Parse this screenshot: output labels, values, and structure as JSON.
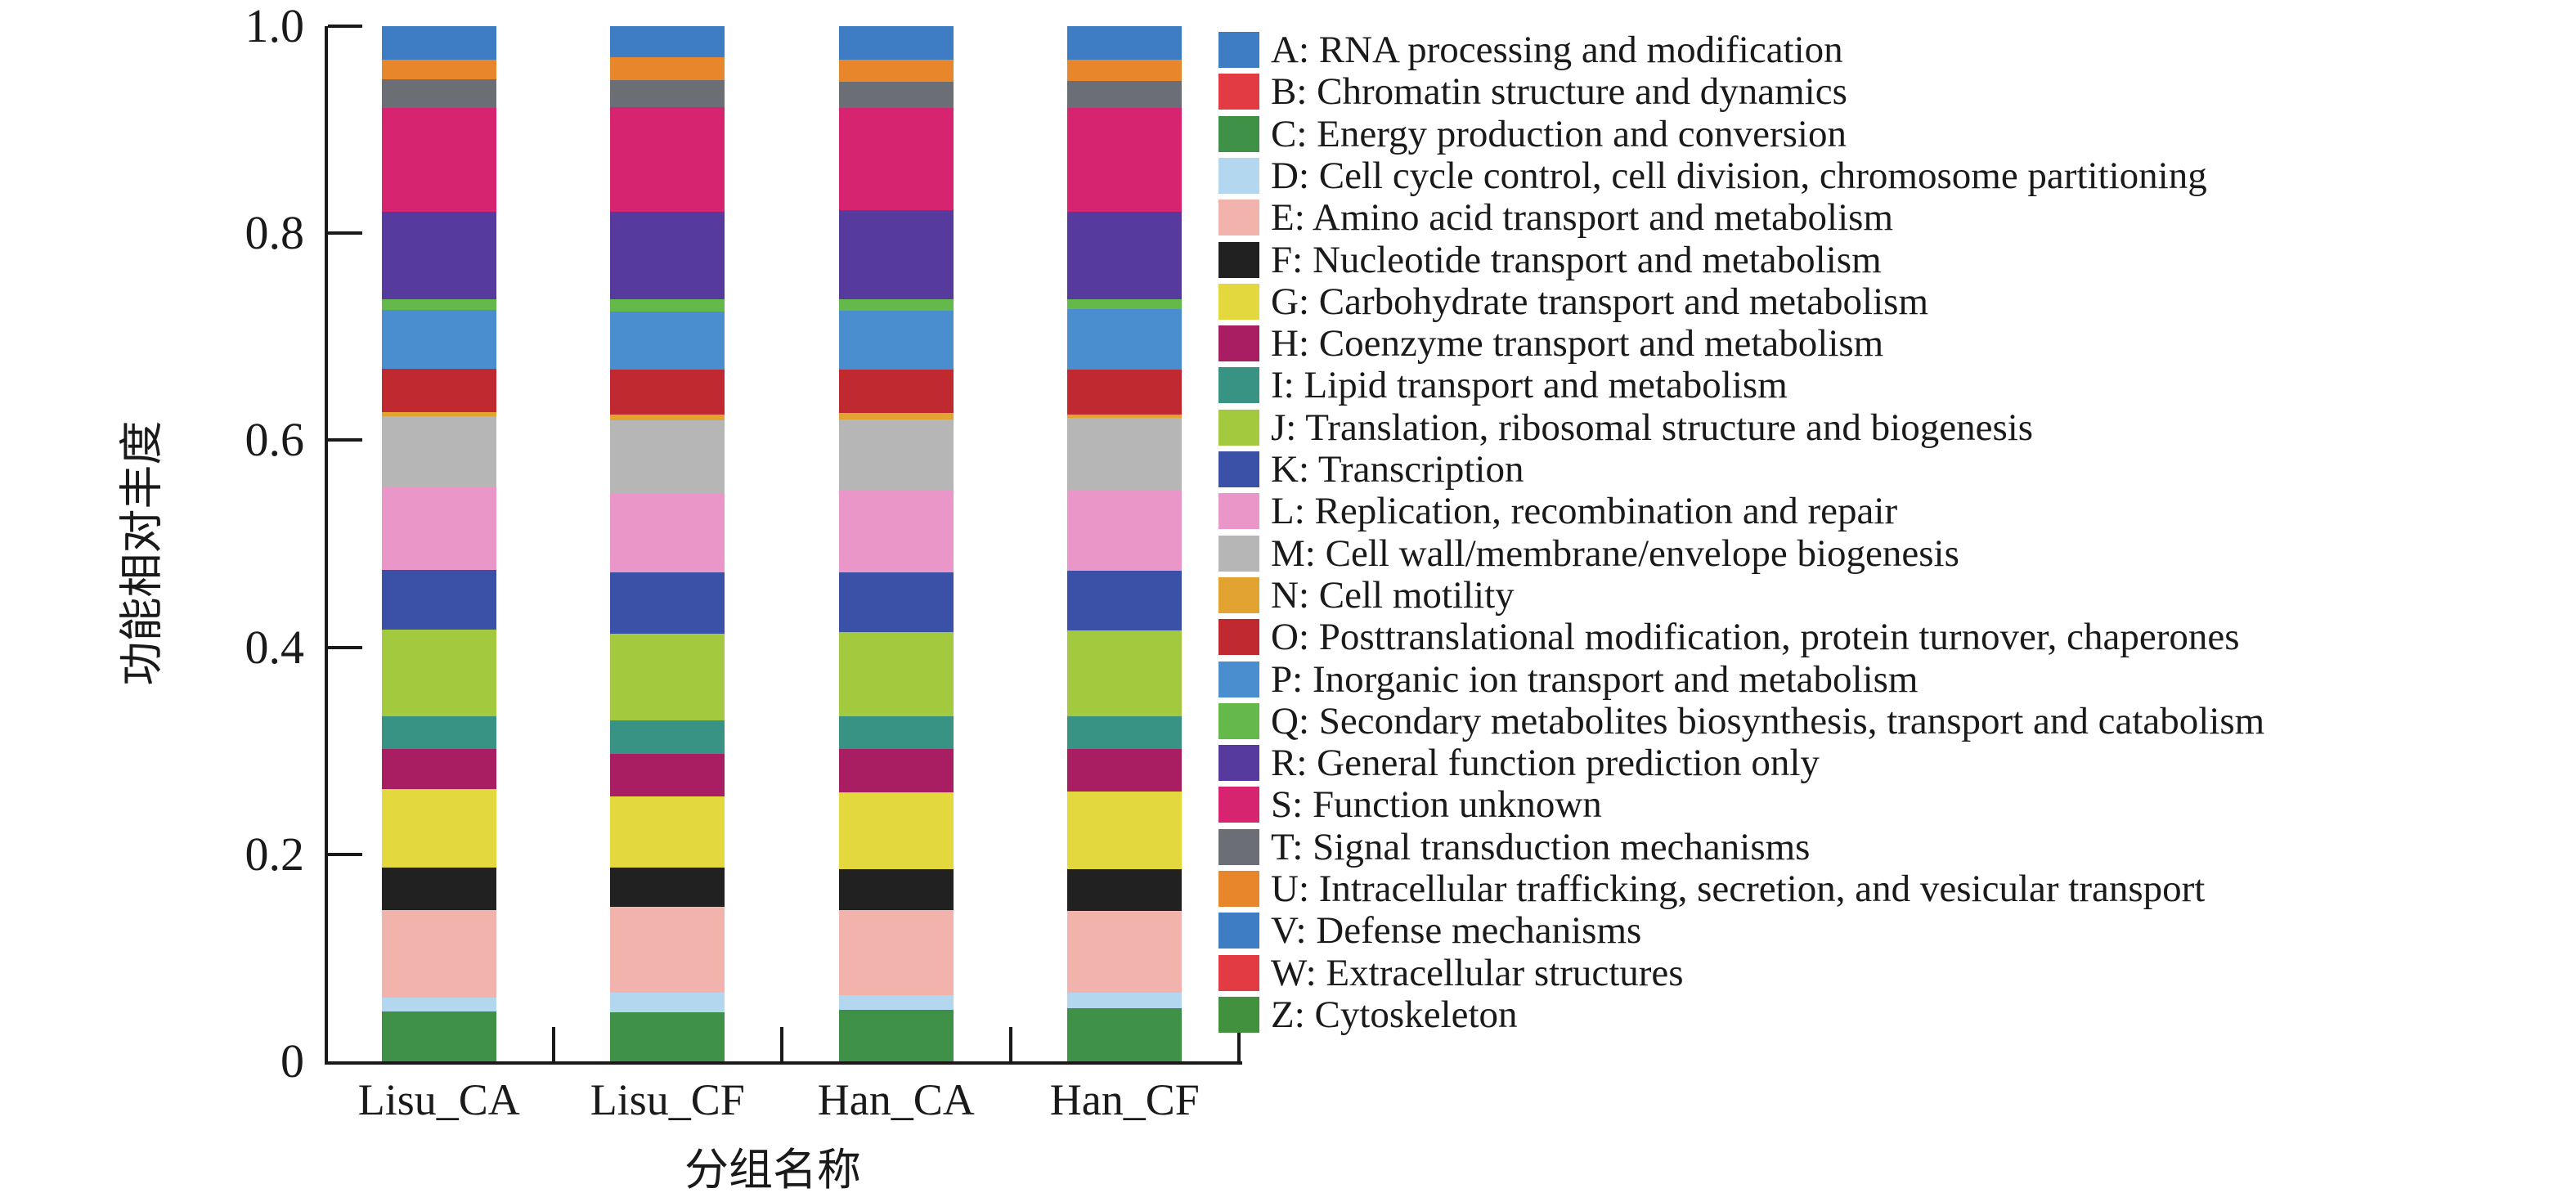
{
  "chart_data": {
    "type": "bar",
    "stacked": true,
    "title": "",
    "xlabel": "分组名称",
    "ylabel": "功能相对丰度",
    "ylim": [
      0,
      1.0
    ],
    "grid": false,
    "legend_position": "right",
    "categories": [
      "Lisu_CA",
      "Lisu_CF",
      "Han_CA",
      "Han_CF"
    ],
    "y_ticks": [
      {
        "label": "1.0",
        "value": 1.0
      },
      {
        "label": "0.8",
        "value": 0.8
      },
      {
        "label": "0.6",
        "value": 0.6
      },
      {
        "label": "0.4",
        "value": 0.4
      },
      {
        "label": "0.2",
        "value": 0.2
      },
      {
        "label": "0",
        "value": 0.0
      }
    ],
    "series": [
      {
        "letter": "C",
        "name": "Energy production and conversion",
        "values": [
          0.048,
          0.047,
          0.05,
          0.051
        ]
      },
      {
        "letter": "D",
        "name": "Cell cycle control, cell division, chromosome partitioning",
        "values": [
          0.014,
          0.019,
          0.014,
          0.015
        ]
      },
      {
        "letter": "E",
        "name": "Amino acid transport and metabolism",
        "values": [
          0.084,
          0.083,
          0.082,
          0.079
        ]
      },
      {
        "letter": "F",
        "name": "Nucleotide transport and metabolism",
        "values": [
          0.041,
          0.038,
          0.04,
          0.041
        ]
      },
      {
        "letter": "G",
        "name": "Carbohydrate transport and metabolism",
        "values": [
          0.076,
          0.069,
          0.074,
          0.075
        ]
      },
      {
        "letter": "H",
        "name": "Coenzyme transport and metabolism",
        "values": [
          0.039,
          0.041,
          0.042,
          0.041
        ]
      },
      {
        "letter": "I",
        "name": "Lipid transport and metabolism",
        "values": [
          0.031,
          0.032,
          0.031,
          0.031
        ]
      },
      {
        "letter": "J",
        "name": "Translation, ribosomal structure and biogenesis",
        "values": [
          0.084,
          0.084,
          0.082,
          0.083
        ]
      },
      {
        "letter": "K",
        "name": "Transcription",
        "values": [
          0.058,
          0.059,
          0.057,
          0.058
        ]
      },
      {
        "letter": "L",
        "name": "Replication, recombination and repair",
        "values": [
          0.08,
          0.077,
          0.079,
          0.077
        ]
      },
      {
        "letter": "M",
        "name": "Cell wall/membrane/envelope biogenesis",
        "values": [
          0.068,
          0.07,
          0.069,
          0.071
        ]
      },
      {
        "letter": "N",
        "name": "Cell motility",
        "values": [
          0.004,
          0.006,
          0.006,
          0.003
        ]
      },
      {
        "letter": "O",
        "name": "Posttranslational modification, protein turnover, chaperones",
        "values": [
          0.042,
          0.043,
          0.042,
          0.043
        ]
      },
      {
        "letter": "P",
        "name": "Inorganic ion transport and metabolism",
        "values": [
          0.057,
          0.056,
          0.057,
          0.059
        ]
      },
      {
        "letter": "Q",
        "name": "Secondary metabolites biosynthesis, transport and catabolism",
        "values": [
          0.01,
          0.012,
          0.011,
          0.009
        ]
      },
      {
        "letter": "R",
        "name": "General function prediction only",
        "values": [
          0.085,
          0.085,
          0.086,
          0.085
        ]
      },
      {
        "letter": "S",
        "name": "Function unknown",
        "values": [
          0.1,
          0.101,
          0.099,
          0.1
        ]
      },
      {
        "letter": "T",
        "name": "Signal transduction mechanisms",
        "values": [
          0.028,
          0.026,
          0.025,
          0.026
        ]
      },
      {
        "letter": "U",
        "name": "Intracellular trafficking, secretion, and vesicular transport",
        "values": [
          0.019,
          0.022,
          0.022,
          0.021
        ]
      },
      {
        "letter": "V",
        "name": "Defense mechanisms",
        "values": [
          0.032,
          0.03,
          0.032,
          0.032
        ]
      }
    ]
  },
  "legend": {
    "colors": {
      "A": "#3e7cc3",
      "B": "#e23b43",
      "C": "#3f9147",
      "D": "#b3d7ee",
      "E": "#f2b3ad",
      "F": "#212121",
      "G": "#e3d83e",
      "H": "#a91d63",
      "I": "#399384",
      "J": "#a3c93e",
      "K": "#3b51a7",
      "L": "#eb96c9",
      "M": "#b7b6b6",
      "N": "#e3a330",
      "O": "#c0292f",
      "P": "#4a8ed0",
      "Q": "#64b94a",
      "R": "#563a9e",
      "S": "#d62470",
      "T": "#6b6f75",
      "U": "#e8862b",
      "V": "#3e7cc3",
      "W": "#e23b43",
      "Z": "#42913f"
    },
    "entries": [
      {
        "letter": "A",
        "label": "A: RNA processing and modification"
      },
      {
        "letter": "B",
        "label": "B: Chromatin structure and dynamics"
      },
      {
        "letter": "C",
        "label": "C: Energy production and conversion"
      },
      {
        "letter": "D",
        "label": "D: Cell cycle control, cell division, chromosome partitioning"
      },
      {
        "letter": "E",
        "label": "E: Amino acid transport and metabolism"
      },
      {
        "letter": "F",
        "label": "F: Nucleotide transport and metabolism"
      },
      {
        "letter": "G",
        "label": "G: Carbohydrate transport and metabolism"
      },
      {
        "letter": "H",
        "label": "H: Coenzyme transport and metabolism"
      },
      {
        "letter": "I",
        "label": "I: Lipid transport and metabolism"
      },
      {
        "letter": "J",
        "label": "J: Translation, ribosomal structure and biogenesis"
      },
      {
        "letter": "K",
        "label": "K: Transcription"
      },
      {
        "letter": "L",
        "label": "L: Replication, recombination and repair"
      },
      {
        "letter": "M",
        "label": "M: Cell wall/membrane/envelope biogenesis"
      },
      {
        "letter": "N",
        "label": "N: Cell motility"
      },
      {
        "letter": "O",
        "label": "O: Posttranslational modification, protein turnover, chaperones"
      },
      {
        "letter": "P",
        "label": "P: Inorganic ion transport and metabolism"
      },
      {
        "letter": "Q",
        "label": "Q: Secondary metabolites biosynthesis, transport and catabolism"
      },
      {
        "letter": "R",
        "label": "R: General function prediction only"
      },
      {
        "letter": "S",
        "label": "S: Function unknown"
      },
      {
        "letter": "T",
        "label": "T: Signal transduction mechanisms"
      },
      {
        "letter": "U",
        "label": "U: Intracellular trafficking, secretion, and vesicular transport"
      },
      {
        "letter": "V",
        "label": "V: Defense mechanisms"
      },
      {
        "letter": "W",
        "label": "W: Extracellular structures"
      },
      {
        "letter": "Z",
        "label": "Z: Cytoskeleton"
      }
    ]
  }
}
